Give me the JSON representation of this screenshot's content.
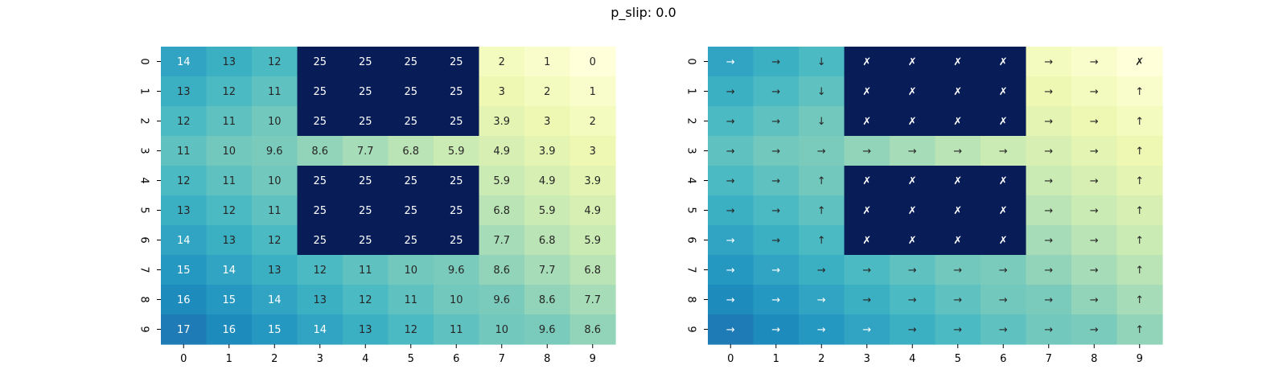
{
  "figure": {
    "title": "p_slip: 0.0"
  },
  "chart_data": [
    {
      "type": "heatmap",
      "title": "",
      "xlabel": "",
      "ylabel": "",
      "x_ticks": [
        "0",
        "1",
        "2",
        "3",
        "4",
        "5",
        "6",
        "7",
        "8",
        "9"
      ],
      "y_ticks": [
        "0",
        "1",
        "2",
        "3",
        "4",
        "5",
        "6",
        "7",
        "8",
        "9"
      ],
      "colormap": "YlGnBu",
      "vmin": 0,
      "vmax": 25,
      "values": [
        [
          14,
          13,
          12,
          25,
          25,
          25,
          25,
          2,
          1,
          0
        ],
        [
          13,
          12,
          11,
          25,
          25,
          25,
          25,
          3,
          2,
          1
        ],
        [
          12,
          11,
          10,
          25,
          25,
          25,
          25,
          3.9,
          3,
          2
        ],
        [
          11,
          10,
          9.6,
          8.6,
          7.7,
          6.8,
          5.9,
          4.9,
          3.9,
          3
        ],
        [
          12,
          11,
          10,
          25,
          25,
          25,
          25,
          5.9,
          4.9,
          3.9
        ],
        [
          13,
          12,
          11,
          25,
          25,
          25,
          25,
          6.8,
          5.9,
          4.9
        ],
        [
          14,
          13,
          12,
          25,
          25,
          25,
          25,
          7.7,
          6.8,
          5.9
        ],
        [
          15,
          14,
          13,
          12,
          11,
          10,
          9.6,
          8.6,
          7.7,
          6.8
        ],
        [
          16,
          15,
          14,
          13,
          12,
          11,
          10,
          9.6,
          8.6,
          7.7
        ],
        [
          17,
          16,
          15,
          14,
          13,
          12,
          11,
          10,
          9.6,
          8.6
        ]
      ]
    },
    {
      "type": "heatmap",
      "title": "",
      "xlabel": "",
      "ylabel": "",
      "x_ticks": [
        "0",
        "1",
        "2",
        "3",
        "4",
        "5",
        "6",
        "7",
        "8",
        "9"
      ],
      "y_ticks": [
        "0",
        "1",
        "2",
        "3",
        "4",
        "5",
        "6",
        "7",
        "8",
        "9"
      ],
      "colormap": "YlGnBu",
      "color_values_source": "same grid values as the left heatmap",
      "labels": [
        [
          "→",
          "→",
          "↓",
          "✗",
          "✗",
          "✗",
          "✗",
          "→",
          "→",
          "✗"
        ],
        [
          "→",
          "→",
          "↓",
          "✗",
          "✗",
          "✗",
          "✗",
          "→",
          "→",
          "↑"
        ],
        [
          "→",
          "→",
          "↓",
          "✗",
          "✗",
          "✗",
          "✗",
          "→",
          "→",
          "↑"
        ],
        [
          "→",
          "→",
          "→",
          "→",
          "→",
          "→",
          "→",
          "→",
          "→",
          "↑"
        ],
        [
          "→",
          "→",
          "↑",
          "✗",
          "✗",
          "✗",
          "✗",
          "→",
          "→",
          "↑"
        ],
        [
          "→",
          "→",
          "↑",
          "✗",
          "✗",
          "✗",
          "✗",
          "→",
          "→",
          "↑"
        ],
        [
          "→",
          "→",
          "↑",
          "✗",
          "✗",
          "✗",
          "✗",
          "→",
          "→",
          "↑"
        ],
        [
          "→",
          "→",
          "→",
          "→",
          "→",
          "→",
          "→",
          "→",
          "→",
          "↑"
        ],
        [
          "→",
          "→",
          "→",
          "→",
          "→",
          "→",
          "→",
          "→",
          "→",
          "↑"
        ],
        [
          "→",
          "→",
          "→",
          "→",
          "→",
          "→",
          "→",
          "→",
          "→",
          "↑"
        ]
      ]
    }
  ]
}
